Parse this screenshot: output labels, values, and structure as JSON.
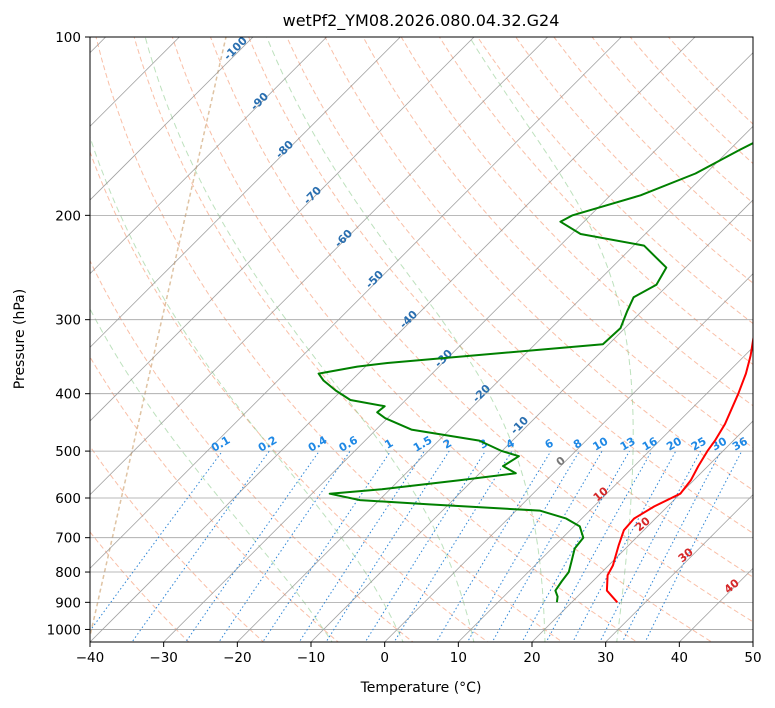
{
  "chart_data": {
    "type": "line",
    "title": "wetPf2_YM08.2026.080.04.32.G24",
    "xlabel": "Temperature (°C)",
    "ylabel": "Pressure (hPa)",
    "xlim": [
      -40,
      50
    ],
    "ylim_hpa": [
      1050,
      100
    ],
    "x_ticks": [
      "−40",
      "−30",
      "−20",
      "−10",
      "0",
      "10",
      "20",
      "30",
      "40",
      "50"
    ],
    "y_ticks": [
      "100",
      "200",
      "300",
      "400",
      "500",
      "600",
      "700",
      "800",
      "900",
      "1000"
    ],
    "y_tick_values": [
      100,
      200,
      300,
      400,
      500,
      600,
      700,
      800,
      900,
      1000
    ],
    "isotherms_c": [
      -130,
      -120,
      -110,
      -100,
      -90,
      -80,
      -70,
      -60,
      -50,
      -40,
      -30,
      -20,
      -10,
      0,
      10,
      20,
      30,
      40,
      50
    ],
    "dry_adiabats_c": [
      -30,
      -20,
      -10,
      0,
      10,
      20,
      30,
      40,
      50,
      60,
      70,
      80,
      90,
      100,
      110,
      120,
      130,
      140,
      150,
      160,
      170
    ],
    "moist_adiabats_c": [
      -10,
      0,
      10,
      20,
      30
    ],
    "mixing_ratio_gkg": [
      0.1,
      0.2,
      0.4,
      0.6,
      1,
      1.5,
      2,
      3,
      4,
      6,
      8,
      10,
      13,
      16,
      20,
      25,
      30,
      36
    ],
    "mixing_ratio_labels": [
      "0.1",
      "0.2",
      "0.4",
      "0.6",
      "1",
      "1.5",
      "2",
      "3",
      "4",
      "6",
      "8",
      "10",
      "13",
      "16",
      "20",
      "25",
      "30",
      "36"
    ],
    "frost_point_labels": [
      "-100",
      "-90",
      "-80",
      "-70",
      "-60",
      "-50",
      "-40",
      "-30",
      "-20",
      "-10"
    ],
    "wetbulb_labels": [
      "0",
      "10",
      "20",
      "30",
      "40"
    ],
    "series": [
      {
        "name": "Temperature",
        "color": "#ff0000",
        "points": [
          [
            900,
            26.2
          ],
          [
            860,
            23.2
          ],
          [
            810,
            21.2
          ],
          [
            780,
            20.6
          ],
          [
            720,
            18.6
          ],
          [
            680,
            17.3
          ],
          [
            650,
            17.1
          ],
          [
            620,
            18.2
          ],
          [
            590,
            20.0
          ],
          [
            560,
            19.6
          ],
          [
            530,
            18.7
          ],
          [
            500,
            17.9
          ],
          [
            480,
            17.5
          ],
          [
            450,
            16.6
          ],
          [
            400,
            14.3
          ],
          [
            370,
            12.6
          ],
          [
            345,
            10.8
          ],
          [
            320,
            8.6
          ],
          [
            300,
            6.6
          ],
          [
            280,
            4.7
          ],
          [
            260,
            2.6
          ],
          [
            245,
            1.3
          ],
          [
            235,
            1.8
          ],
          [
            225,
            5.1
          ],
          [
            215,
            9.2
          ],
          [
            205,
            10.1
          ],
          [
            195,
            9.3
          ],
          [
            180,
            6.6
          ],
          [
            165,
            5.2
          ],
          [
            150,
            4.4
          ],
          [
            140,
            3.3
          ],
          [
            130,
            2.6
          ],
          [
            120,
            2.0
          ],
          [
            110,
            1.7
          ],
          [
            100,
            0.3
          ]
        ]
      },
      {
        "name": "Dewpoint",
        "color": "#008000",
        "points": [
          [
            900,
            18.0
          ],
          [
            880,
            17.3
          ],
          [
            860,
            16.2
          ],
          [
            830,
            15.8
          ],
          [
            800,
            15.5
          ],
          [
            770,
            14.5
          ],
          [
            730,
            13.1
          ],
          [
            700,
            12.8
          ],
          [
            670,
            10.8
          ],
          [
            650,
            7.9
          ],
          [
            630,
            3.2
          ],
          [
            615,
            -12.6
          ],
          [
            605,
            -22.6
          ],
          [
            590,
            -27.6
          ],
          [
            580,
            -21.1
          ],
          [
            560,
            -11.8
          ],
          [
            545,
            -5.1
          ],
          [
            530,
            -7.8
          ],
          [
            510,
            -7.0
          ],
          [
            500,
            -10.0
          ],
          [
            480,
            -14.5
          ],
          [
            460,
            -25.2
          ],
          [
            440,
            -30.3
          ],
          [
            430,
            -32.2
          ],
          [
            420,
            -32.0
          ],
          [
            410,
            -37.5
          ],
          [
            395,
            -40.8
          ],
          [
            380,
            -43.8
          ],
          [
            370,
            -45.4
          ],
          [
            360,
            -41.1
          ],
          [
            355,
            -37.5
          ],
          [
            330,
            -10.8
          ],
          [
            310,
            -10.6
          ],
          [
            290,
            -12.0
          ],
          [
            275,
            -13.0
          ],
          [
            262,
            -11.6
          ],
          [
            245,
            -12.6
          ],
          [
            225,
            -18.6
          ],
          [
            215,
            -28.8
          ],
          [
            205,
            -33.2
          ],
          [
            200,
            -32.4
          ],
          [
            185,
            -25.9
          ],
          [
            170,
            -21.4
          ],
          [
            155,
            -18.6
          ],
          [
            140,
            -15.2
          ],
          [
            125,
            -15.2
          ],
          [
            115,
            -13.4
          ],
          [
            100,
            -11.8
          ]
        ]
      }
    ]
  }
}
